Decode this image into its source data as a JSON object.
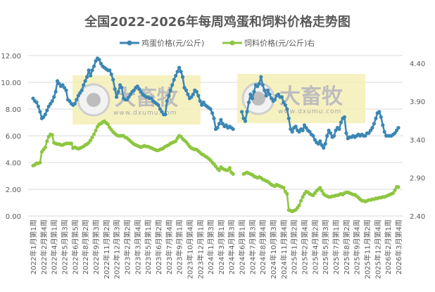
{
  "chart_data": {
    "type": "line",
    "title": "全国2022-2026年每周鸡蛋和饲料价格走势图",
    "x_tick_labels": [
      "2022年1月第1周",
      "2022年2月第4周",
      "2022年4月第1周",
      "2022年5月第3周",
      "2022年6月第5周",
      "2022年8月第2周",
      "2022年9月第3周",
      "2022年11月第2周",
      "2022年12月第3周",
      "2023年2月第2周",
      "2023年3月第4周",
      "2023年5月第1周",
      "2023年6月第2周",
      "2023年7月第4周",
      "2023年9月第1周",
      "2023年10月第4周",
      "2023年12月第1周",
      "2024年1月第3周",
      "2024年3月第1周",
      "2024年4月第3周",
      "2024年6月第1周",
      "2024年7月第3周",
      "2024年8月第4周",
      "2024年10月第3周",
      "2024年11月第4周",
      "2025年1月第2周",
      "2025年2月第4周",
      "2025年4月第2周",
      "2025年5月第3周",
      "2025年7月第1周",
      "2025年8月第2周",
      "2025年9月第4周",
      "2025年11月第2周",
      "2025年12月第4周",
      "2026年2月第1周",
      "2026年3月第4周"
    ],
    "x_tick_every_weeks": 6,
    "y_left": {
      "min": 0,
      "max": 12,
      "step": 2,
      "tick_labels": [
        "0.00",
        "2.00",
        "4.00",
        "6.00",
        "8.00",
        "10.00",
        "12.00"
      ]
    },
    "y_right": {
      "min": 2.4,
      "max": 4.5,
      "tick_labels": [
        "2.40",
        "2.90",
        "3.40",
        "3.90",
        "4.40"
      ],
      "tick_values": [
        2.4,
        2.9,
        3.4,
        3.9,
        4.4
      ]
    },
    "grid": "horizontal",
    "legend_position": "top",
    "series": [
      {
        "name": "鸡蛋价格(元/公斤)",
        "axis": "left",
        "color": "#3a86b4",
        "values": [
          8.8,
          8.6,
          8.5,
          8.2,
          7.8,
          7.3,
          7.4,
          7.6,
          7.9,
          8.2,
          8.4,
          8.6,
          8.9,
          9.3,
          10.1,
          9.9,
          9.7,
          9.8,
          9.6,
          9.4,
          8.7,
          8.6,
          8.4,
          8.3,
          8.4,
          8.7,
          9.0,
          9.2,
          9.4,
          9.8,
          10.1,
          10.4,
          10.9,
          10.5,
          10.9,
          11.2,
          11.6,
          11.8,
          11.7,
          11.4,
          11.2,
          11.1,
          11.0,
          10.9,
          10.9,
          10.6,
          10.2,
          9.5,
          8.9,
          9.3,
          9.8,
          9.6,
          8.8,
          8.7,
          8.7,
          8.9,
          9.1,
          9.3,
          9.4,
          9.6,
          9.7,
          9.5,
          9.3,
          9.1,
          9.0,
          8.9,
          8.9,
          8.8,
          8.8,
          8.6,
          8.5,
          8.4,
          8.3,
          8.0,
          7.8,
          7.6,
          7.6,
          8.6,
          9.0,
          9.4,
          9.8,
          10.2,
          10.5,
          10.8,
          11.1,
          10.8,
          10.4,
          9.6,
          9.4,
          9.1,
          8.8,
          8.9,
          9.1,
          9.4,
          9.3,
          9.0,
          8.6,
          8.3,
          8.5,
          8.3,
          8.2,
          8.1,
          8.0,
          7.7,
          7.3,
          6.5,
          6.6,
          6.9,
          7.2,
          6.9,
          6.7,
          6.8,
          6.6,
          6.7,
          6.6,
          6.5,
          null,
          null,
          null,
          null,
          7.8,
          7.3,
          7.1,
          7.8,
          8.5,
          9.1,
          8.8,
          9.3,
          9.8,
          9.7,
          9.9,
          10.4,
          9.8,
          9.4,
          9.0,
          9.4,
          9.1,
          8.8,
          8.6,
          8.7,
          9.0,
          9.1,
          8.9,
          8.9,
          8.5,
          8.3,
          8.0,
          7.3,
          6.5,
          6.3,
          6.6,
          6.7,
          6.4,
          6.3,
          6.5,
          6.4,
          6.8,
          6.6,
          6.4,
          6.3,
          6.1,
          6.0,
          5.7,
          5.5,
          5.4,
          5.6,
          5.3,
          5.1,
          5.4,
          6.0,
          6.4,
          6.2,
          5.9,
          6.0,
          6.4,
          6.6,
          6.5,
          7.0,
          7.3,
          7.4,
          6.2,
          5.8,
          5.9,
          5.9,
          6.0,
          5.9,
          6.0,
          6.1,
          6.0,
          6.1,
          6.0,
          6.0,
          6.2,
          6.2,
          6.4,
          6.6,
          6.9,
          7.3,
          7.7,
          7.8,
          7.4,
          6.8,
          6.3,
          6.0,
          6.0,
          6.0,
          6.0,
          6.1,
          6.2,
          6.4,
          6.6
        ]
      },
      {
        "name": "饲料价格(元/公斤)右",
        "axis": "right",
        "color": "#8dc641",
        "values": [
          3.06,
          3.07,
          3.09,
          3.09,
          3.1,
          3.24,
          3.27,
          3.3,
          3.38,
          3.44,
          3.47,
          3.46,
          3.36,
          3.35,
          3.34,
          3.34,
          3.33,
          3.33,
          3.34,
          3.35,
          3.35,
          3.35,
          3.35,
          3.29,
          3.3,
          3.29,
          3.28,
          3.29,
          3.3,
          3.31,
          3.33,
          3.34,
          3.36,
          3.39,
          3.43,
          3.47,
          3.52,
          3.57,
          3.6,
          3.61,
          3.63,
          3.64,
          3.62,
          3.6,
          3.56,
          3.53,
          3.5,
          3.48,
          3.46,
          3.45,
          3.45,
          3.45,
          3.45,
          3.43,
          3.42,
          3.4,
          3.38,
          3.36,
          3.34,
          3.33,
          3.32,
          3.31,
          3.3,
          3.31,
          3.32,
          3.31,
          3.31,
          3.3,
          3.29,
          3.28,
          3.27,
          3.26,
          3.26,
          3.27,
          3.28,
          3.29,
          3.31,
          3.32,
          3.33,
          3.35,
          3.36,
          3.37,
          3.38,
          3.42,
          3.45,
          3.44,
          3.41,
          3.39,
          3.37,
          3.34,
          3.31,
          3.29,
          3.28,
          3.27,
          3.27,
          3.25,
          3.23,
          3.21,
          3.2,
          3.18,
          3.17,
          3.15,
          3.13,
          3.1,
          3.08,
          3.05,
          3.02,
          3.0,
          3.04,
          3.02,
          3.01,
          3.0,
          3.0,
          3.03,
          2.97,
          2.95,
          null,
          null,
          null,
          null,
          null,
          2.95,
          2.96,
          2.97,
          2.96,
          2.95,
          2.94,
          2.92,
          2.91,
          2.9,
          2.91,
          2.9,
          2.88,
          2.87,
          2.86,
          2.85,
          2.83,
          2.81,
          2.8,
          2.79,
          2.81,
          2.8,
          2.79,
          2.78,
          2.77,
          2.72,
          2.69,
          2.48,
          2.47,
          2.46,
          2.47,
          2.48,
          2.51,
          2.54,
          2.6,
          2.65,
          2.69,
          2.72,
          2.71,
          2.69,
          2.68,
          2.67,
          2.7,
          2.73,
          2.75,
          2.77,
          2.73,
          2.69,
          2.67,
          2.66,
          2.65,
          2.65,
          2.66,
          2.66,
          2.67,
          2.67,
          2.68,
          2.69,
          2.68,
          2.7,
          2.71,
          2.71,
          2.7,
          2.69,
          2.68,
          2.68,
          2.66,
          2.64,
          2.62,
          2.6,
          2.6,
          2.59,
          2.6,
          2.61,
          2.61,
          2.62,
          2.62,
          2.63,
          2.63,
          2.64,
          2.64,
          2.65,
          2.65,
          2.66,
          2.67,
          2.68,
          2.69,
          2.7,
          2.74,
          2.78,
          2.78
        ]
      }
    ]
  },
  "watermark": {
    "brand": "大畜牧",
    "url": "www.dxumu.com",
    "box_color": "#f5efb5"
  }
}
